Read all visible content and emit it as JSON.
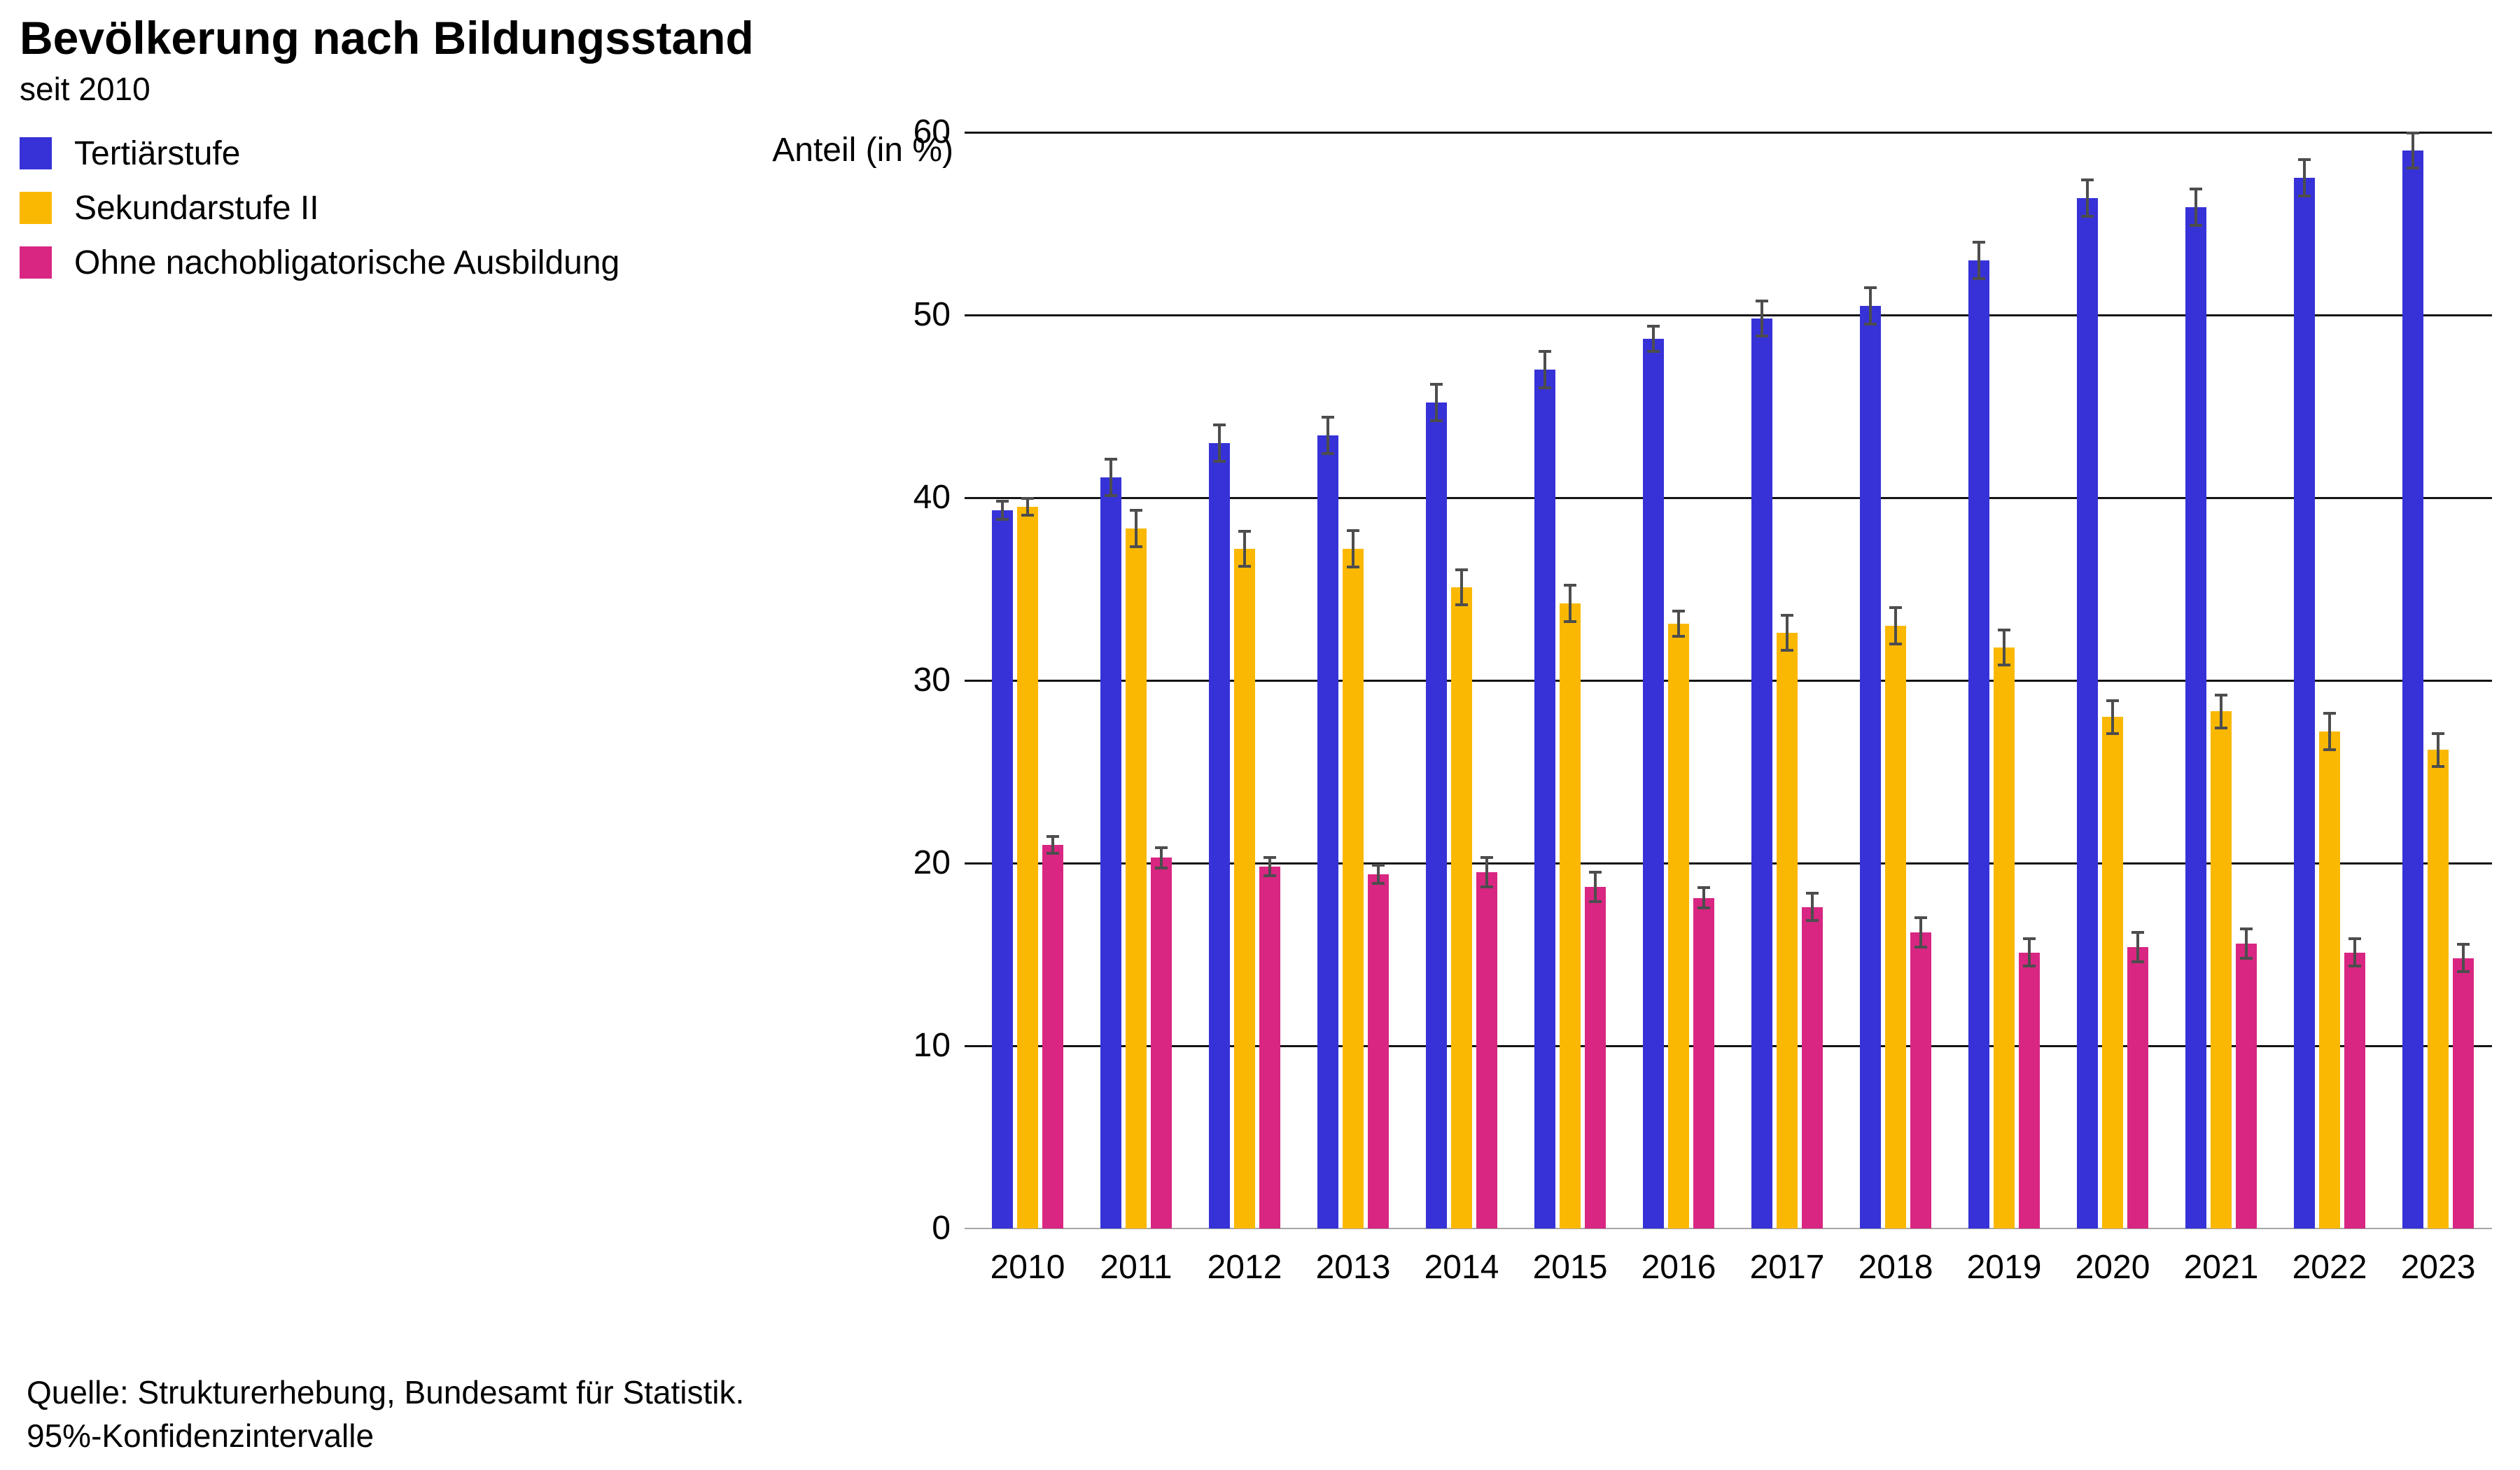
{
  "chart_data": {
    "type": "bar",
    "title": "Bevölkerung nach Bildungsstand",
    "subtitle": "seit 2010",
    "ylabel": "Anteil (in %)",
    "xlabel": "",
    "ylim": [
      0,
      60
    ],
    "yticks": [
      0,
      10,
      20,
      30,
      40,
      50,
      60
    ],
    "grid": "horizontal",
    "legend_position": "top-left",
    "error_bars": "95% confidence intervals",
    "categories": [
      "2010",
      "2011",
      "2012",
      "2013",
      "2014",
      "2015",
      "2016",
      "2017",
      "2018",
      "2019",
      "2020",
      "2021",
      "2022",
      "2023"
    ],
    "series": [
      {
        "name": "Tertiärstufe",
        "color": "#3632d7",
        "values": [
          39.3,
          41.1,
          43.0,
          43.4,
          45.2,
          47.0,
          48.7,
          49.8,
          50.5,
          53.0,
          56.4,
          55.9,
          57.5,
          59.0
        ],
        "ci95": [
          0.5,
          1.0,
          1.0,
          1.0,
          1.0,
          1.0,
          0.7,
          0.95,
          1.0,
          1.0,
          1.0,
          1.0,
          1.0,
          0.95
        ]
      },
      {
        "name": "Sekundarstufe II",
        "color": "#fbb802",
        "values": [
          39.5,
          38.3,
          37.2,
          37.2,
          35.1,
          34.2,
          33.1,
          32.6,
          33.0,
          31.8,
          28.0,
          28.3,
          27.2,
          26.2
        ],
        "ci95": [
          0.45,
          1.0,
          0.95,
          1.0,
          0.95,
          1.0,
          0.7,
          0.95,
          1.0,
          0.95,
          0.9,
          0.9,
          1.0,
          0.9
        ]
      },
      {
        "name": "Ohne nachobligatorische Ausbildung",
        "color": "#d82682",
        "values": [
          21.0,
          20.3,
          19.8,
          19.4,
          19.5,
          18.7,
          18.1,
          17.6,
          16.2,
          15.1,
          15.4,
          15.6,
          15.1,
          14.8
        ],
        "ci95": [
          0.45,
          0.55,
          0.5,
          0.5,
          0.8,
          0.8,
          0.55,
          0.75,
          0.8,
          0.75,
          0.8,
          0.8,
          0.75,
          0.75
        ]
      }
    ]
  },
  "footer": {
    "source": "Quelle: Strukturerhebung, Bundesamt für Statistik.",
    "note": "95%-Konfidenzintervalle"
  }
}
